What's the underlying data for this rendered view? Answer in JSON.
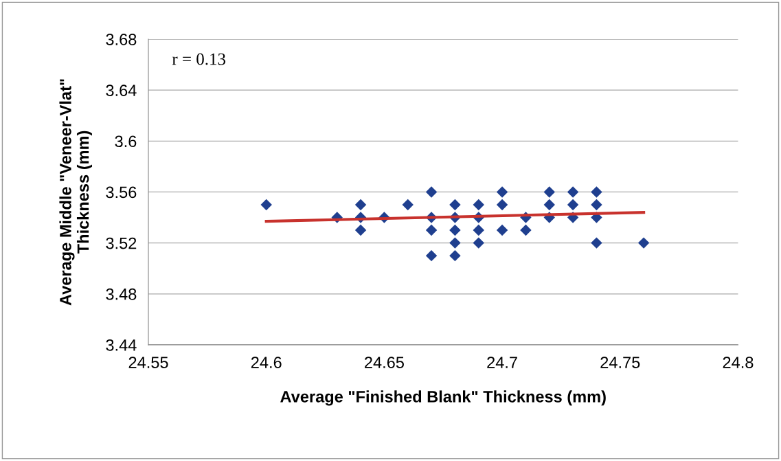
{
  "chart_data": {
    "type": "scatter",
    "xlabel": "Average \"Finished Blank\" Thickness (mm)",
    "ylabel": "Average Middle \"Veneer-Vlat\"\nThickness (mm)",
    "annotations": [
      "r = 0.13"
    ],
    "xlim": [
      24.55,
      24.8
    ],
    "xticks": [
      24.55,
      24.6,
      24.65,
      24.7,
      24.75,
      24.8
    ],
    "ylim": [
      3.44,
      3.68
    ],
    "yticks": [
      3.44,
      3.48,
      3.52,
      3.56,
      3.6,
      3.64,
      3.68
    ],
    "grid": "y",
    "legend": false,
    "marker": "diamond",
    "series": [
      {
        "color": "#1f3f8f",
        "x": [
          24.6,
          24.63,
          24.64,
          24.64,
          24.64,
          24.65,
          24.66,
          24.67,
          24.67,
          24.67,
          24.67,
          24.68,
          24.68,
          24.68,
          24.68,
          24.68,
          24.69,
          24.69,
          24.69,
          24.69,
          24.7,
          24.7,
          24.7,
          24.71,
          24.71,
          24.72,
          24.72,
          24.72,
          24.73,
          24.73,
          24.73,
          24.74,
          24.74,
          24.74,
          24.74,
          24.76
        ],
        "values": [
          3.55,
          3.54,
          3.55,
          3.54,
          3.53,
          3.54,
          3.55,
          3.56,
          3.54,
          3.53,
          3.51,
          3.55,
          3.54,
          3.53,
          3.52,
          3.51,
          3.55,
          3.54,
          3.53,
          3.52,
          3.56,
          3.55,
          3.53,
          3.54,
          3.53,
          3.56,
          3.55,
          3.54,
          3.56,
          3.55,
          3.54,
          3.56,
          3.55,
          3.54,
          3.52,
          3.52
        ]
      },
      {
        "type": "line",
        "color": "#c8322d",
        "x": [
          24.6,
          24.76
        ],
        "values": [
          3.537,
          3.544
        ],
        "marker": "none"
      }
    ]
  }
}
